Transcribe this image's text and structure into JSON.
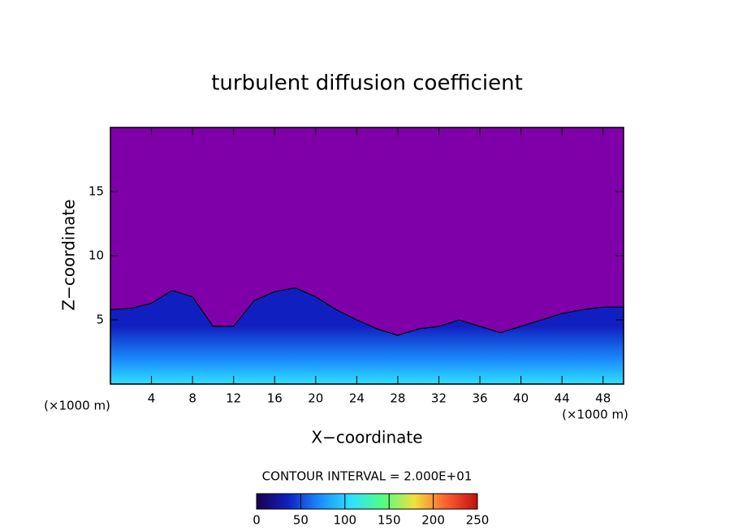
{
  "chart_data": {
    "type": "contour",
    "title": "turbulent diffusion coefficient",
    "xlabel": "X−coordinate",
    "ylabel": "Z−coordinate",
    "x_unit_label": "(×1000 m)",
    "y_unit_label": "(×1000 m)",
    "contour_interval_label": "CONTOUR INTERVAL = 2.000E+01",
    "background_color": "#7f00a8",
    "x": [
      0,
      2,
      4,
      6,
      8,
      10,
      12,
      14,
      16,
      18,
      20,
      22,
      24,
      26,
      28,
      30,
      32,
      34,
      36,
      38,
      40,
      42,
      44,
      46,
      48,
      50
    ],
    "values": [
      5.8,
      5.9,
      6.3,
      7.3,
      6.8,
      4.5,
      4.5,
      6.5,
      7.2,
      7.5,
      6.8,
      5.8,
      5.0,
      4.3,
      3.8,
      4.3,
      4.5,
      5.0,
      4.5,
      4.0,
      4.5,
      5.0,
      5.5,
      5.8,
      6.0,
      6.0
    ],
    "xlim": [
      0,
      50
    ],
    "ylim": [
      0,
      20
    ],
    "xticks": [
      4,
      8,
      12,
      16,
      20,
      24,
      28,
      32,
      36,
      40,
      44,
      48
    ],
    "yticks": [
      5,
      10,
      15
    ],
    "colormap": [
      "#1a0050",
      "#1020c0",
      "#1a8cff",
      "#30e0ff",
      "#50ff80",
      "#f0e040",
      "#ff6030",
      "#c01010"
    ],
    "clim": [
      0,
      250
    ],
    "colorbar_ticks": [
      0,
      50,
      100,
      150,
      200,
      250
    ]
  }
}
